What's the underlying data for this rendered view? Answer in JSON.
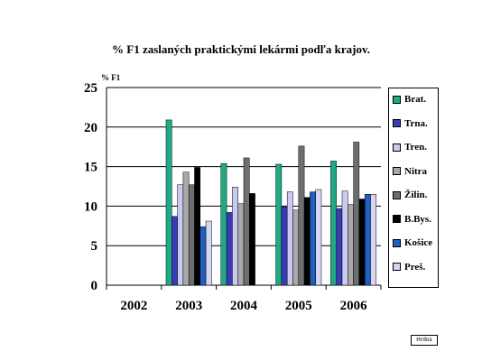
{
  "chart_data": {
    "type": "bar",
    "title": "% F1 zaslaných praktickými lekármi podľa krajov.",
    "ylabel": "% F1",
    "ylim": [
      0,
      25
    ],
    "yticks": [
      0,
      5,
      10,
      15,
      20,
      25
    ],
    "grid": true,
    "legend_position": "right",
    "categories": [
      "2002",
      "2003",
      "2004",
      "2005",
      "2006"
    ],
    "series": [
      {
        "name": "Brat.",
        "color": "#1FAA86",
        "values": [
          null,
          20.9,
          15.4,
          15.3,
          15.7
        ]
      },
      {
        "name": "Trna.",
        "color": "#3B3BB8",
        "values": [
          null,
          8.7,
          9.2,
          9.9,
          9.7
        ]
      },
      {
        "name": "Tren.",
        "color": "#C9C9F2",
        "values": [
          null,
          12.7,
          12.4,
          11.8,
          11.9
        ]
      },
      {
        "name": "Nitra",
        "color": "#A9A9A9",
        "values": [
          null,
          14.3,
          10.3,
          9.5,
          10.2
        ]
      },
      {
        "name": "Žilin.",
        "color": "#6E6E6E",
        "values": [
          null,
          12.7,
          16.1,
          17.6,
          18.1
        ]
      },
      {
        "name": "B.Bys.",
        "color": "#000000",
        "values": [
          null,
          14.9,
          11.6,
          11.1,
          10.9
        ]
      },
      {
        "name": "Košice",
        "color": "#1F5FBF",
        "values": [
          null,
          7.4,
          null,
          11.8,
          11.5
        ]
      },
      {
        "name": "Preš.",
        "color": "#D6D6F4",
        "values": [
          null,
          8.1,
          null,
          12.1,
          11.5
        ]
      }
    ]
  },
  "footer_label": "Hrdos"
}
